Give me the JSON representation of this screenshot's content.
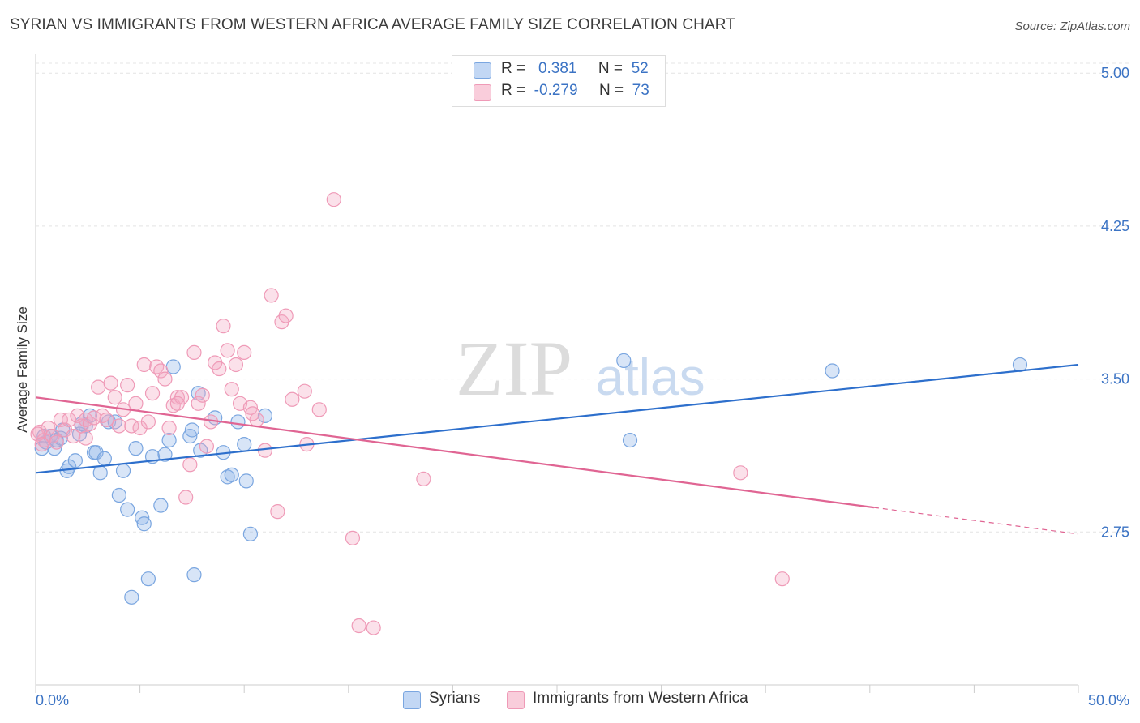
{
  "chart_data": {
    "type": "scatter",
    "title": "SYRIAN VS IMMIGRANTS FROM WESTERN AFRICA AVERAGE FAMILY SIZE CORRELATION CHART",
    "source": "Source: ZipAtlas.com",
    "xlabel": "",
    "ylabel": "Average Family Size",
    "xlim": [
      0,
      50
    ],
    "ylim": [
      2.0,
      5.12
    ],
    "x_tick_labels": [
      "0.0%",
      "50.0%"
    ],
    "y_ticks": [
      {
        "value": 5.0,
        "label": "5.00"
      },
      {
        "value": 4.25,
        "label": "4.25"
      },
      {
        "value": 3.5,
        "label": "3.50"
      },
      {
        "value": 2.75,
        "label": "2.75"
      }
    ],
    "watermark": {
      "zip": "ZIP",
      "atlas": "atlas"
    },
    "legend": {
      "rows": [
        {
          "r_label": "R =",
          "r_value": "0.381",
          "n_label": "N =",
          "n_value": "52"
        },
        {
          "r_label": "R =",
          "r_value": "-0.279",
          "n_label": "N =",
          "n_value": "73"
        }
      ]
    },
    "series": [
      {
        "name": "Syrians",
        "color": "#8fb4e8",
        "line_color": "#2d6fcc",
        "trend": {
          "x": [
            0,
            50
          ],
          "y": [
            3.04,
            3.57
          ]
        },
        "points": [
          [
            0.3,
            3.16
          ],
          [
            0.5,
            3.19
          ],
          [
            0.7,
            3.22
          ],
          [
            0.9,
            3.16
          ],
          [
            1.0,
            3.2
          ],
          [
            1.3,
            3.25
          ],
          [
            1.5,
            3.05
          ],
          [
            1.6,
            3.07
          ],
          [
            1.9,
            3.1
          ],
          [
            2.1,
            3.23
          ],
          [
            2.4,
            3.27
          ],
          [
            2.6,
            3.32
          ],
          [
            2.8,
            3.14
          ],
          [
            2.9,
            3.14
          ],
          [
            3.1,
            3.04
          ],
          [
            3.3,
            3.11
          ],
          [
            3.5,
            3.29
          ],
          [
            3.8,
            3.29
          ],
          [
            4.0,
            2.93
          ],
          [
            4.2,
            3.05
          ],
          [
            4.4,
            2.86
          ],
          [
            4.6,
            2.43
          ],
          [
            4.8,
            3.16
          ],
          [
            5.1,
            2.82
          ],
          [
            5.2,
            2.79
          ],
          [
            5.4,
            2.52
          ],
          [
            5.6,
            3.12
          ],
          [
            6.0,
            2.88
          ],
          [
            6.2,
            3.13
          ],
          [
            6.4,
            3.2
          ],
          [
            6.6,
            3.56
          ],
          [
            7.4,
            3.22
          ],
          [
            7.5,
            3.25
          ],
          [
            7.6,
            2.54
          ],
          [
            7.8,
            3.43
          ],
          [
            7.9,
            3.15
          ],
          [
            8.6,
            3.31
          ],
          [
            9.0,
            3.14
          ],
          [
            9.2,
            3.02
          ],
          [
            9.4,
            3.03
          ],
          [
            9.7,
            3.29
          ],
          [
            10.0,
            3.18
          ],
          [
            10.1,
            3.0
          ],
          [
            10.3,
            2.74
          ],
          [
            11.0,
            3.32
          ],
          [
            0.4,
            3.22
          ],
          [
            1.2,
            3.21
          ],
          [
            2.2,
            3.28
          ],
          [
            28.2,
            3.59
          ],
          [
            28.5,
            3.2
          ],
          [
            38.2,
            3.54
          ],
          [
            47.2,
            3.57
          ]
        ]
      },
      {
        "name": "Immigrants from Western Africa",
        "color": "#f4a9c2",
        "line_color": "#e06593",
        "trend": {
          "x": [
            0,
            40.2
          ],
          "y": [
            3.41,
            2.87
          ]
        },
        "trend_dashed": {
          "x": [
            40.2,
            50
          ],
          "y": [
            2.87,
            2.74
          ]
        },
        "points": [
          [
            0.2,
            3.24
          ],
          [
            0.4,
            3.2
          ],
          [
            0.6,
            3.26
          ],
          [
            0.8,
            3.22
          ],
          [
            1.0,
            3.19
          ],
          [
            1.2,
            3.3
          ],
          [
            1.4,
            3.25
          ],
          [
            1.6,
            3.3
          ],
          [
            1.8,
            3.22
          ],
          [
            2.0,
            3.32
          ],
          [
            2.2,
            3.27
          ],
          [
            2.4,
            3.3
          ],
          [
            2.6,
            3.28
          ],
          [
            2.8,
            3.31
          ],
          [
            3.0,
            3.46
          ],
          [
            3.2,
            3.32
          ],
          [
            3.4,
            3.3
          ],
          [
            3.6,
            3.48
          ],
          [
            3.8,
            3.41
          ],
          [
            4.0,
            3.27
          ],
          [
            4.2,
            3.35
          ],
          [
            4.4,
            3.47
          ],
          [
            4.6,
            3.27
          ],
          [
            4.8,
            3.38
          ],
          [
            5.0,
            3.26
          ],
          [
            5.2,
            3.57
          ],
          [
            5.4,
            3.29
          ],
          [
            5.6,
            3.43
          ],
          [
            5.8,
            3.56
          ],
          [
            6.0,
            3.54
          ],
          [
            6.2,
            3.5
          ],
          [
            6.4,
            3.26
          ],
          [
            6.6,
            3.37
          ],
          [
            6.8,
            3.41
          ],
          [
            7.0,
            3.41
          ],
          [
            7.2,
            2.92
          ],
          [
            7.4,
            3.08
          ],
          [
            7.6,
            3.63
          ],
          [
            7.8,
            3.38
          ],
          [
            8.0,
            3.42
          ],
          [
            8.2,
            3.17
          ],
          [
            8.4,
            3.29
          ],
          [
            8.6,
            3.58
          ],
          [
            8.8,
            3.55
          ],
          [
            9.0,
            3.76
          ],
          [
            9.2,
            3.64
          ],
          [
            9.4,
            3.45
          ],
          [
            9.6,
            3.57
          ],
          [
            9.8,
            3.38
          ],
          [
            10.0,
            3.63
          ],
          [
            10.3,
            3.36
          ],
          [
            10.6,
            3.3
          ],
          [
            11.0,
            3.15
          ],
          [
            11.3,
            3.91
          ],
          [
            11.6,
            2.85
          ],
          [
            11.8,
            3.78
          ],
          [
            12.0,
            3.81
          ],
          [
            12.3,
            3.4
          ],
          [
            12.9,
            3.44
          ],
          [
            13.0,
            3.18
          ],
          [
            13.6,
            3.35
          ],
          [
            14.3,
            4.38
          ],
          [
            15.2,
            2.72
          ],
          [
            15.5,
            2.29
          ],
          [
            16.2,
            2.28
          ],
          [
            18.6,
            3.01
          ],
          [
            0.1,
            3.23
          ],
          [
            0.3,
            3.18
          ],
          [
            2.4,
            3.21
          ],
          [
            6.8,
            3.38
          ],
          [
            10.4,
            3.33
          ],
          [
            33.8,
            3.04
          ],
          [
            35.8,
            2.52
          ]
        ]
      }
    ]
  }
}
